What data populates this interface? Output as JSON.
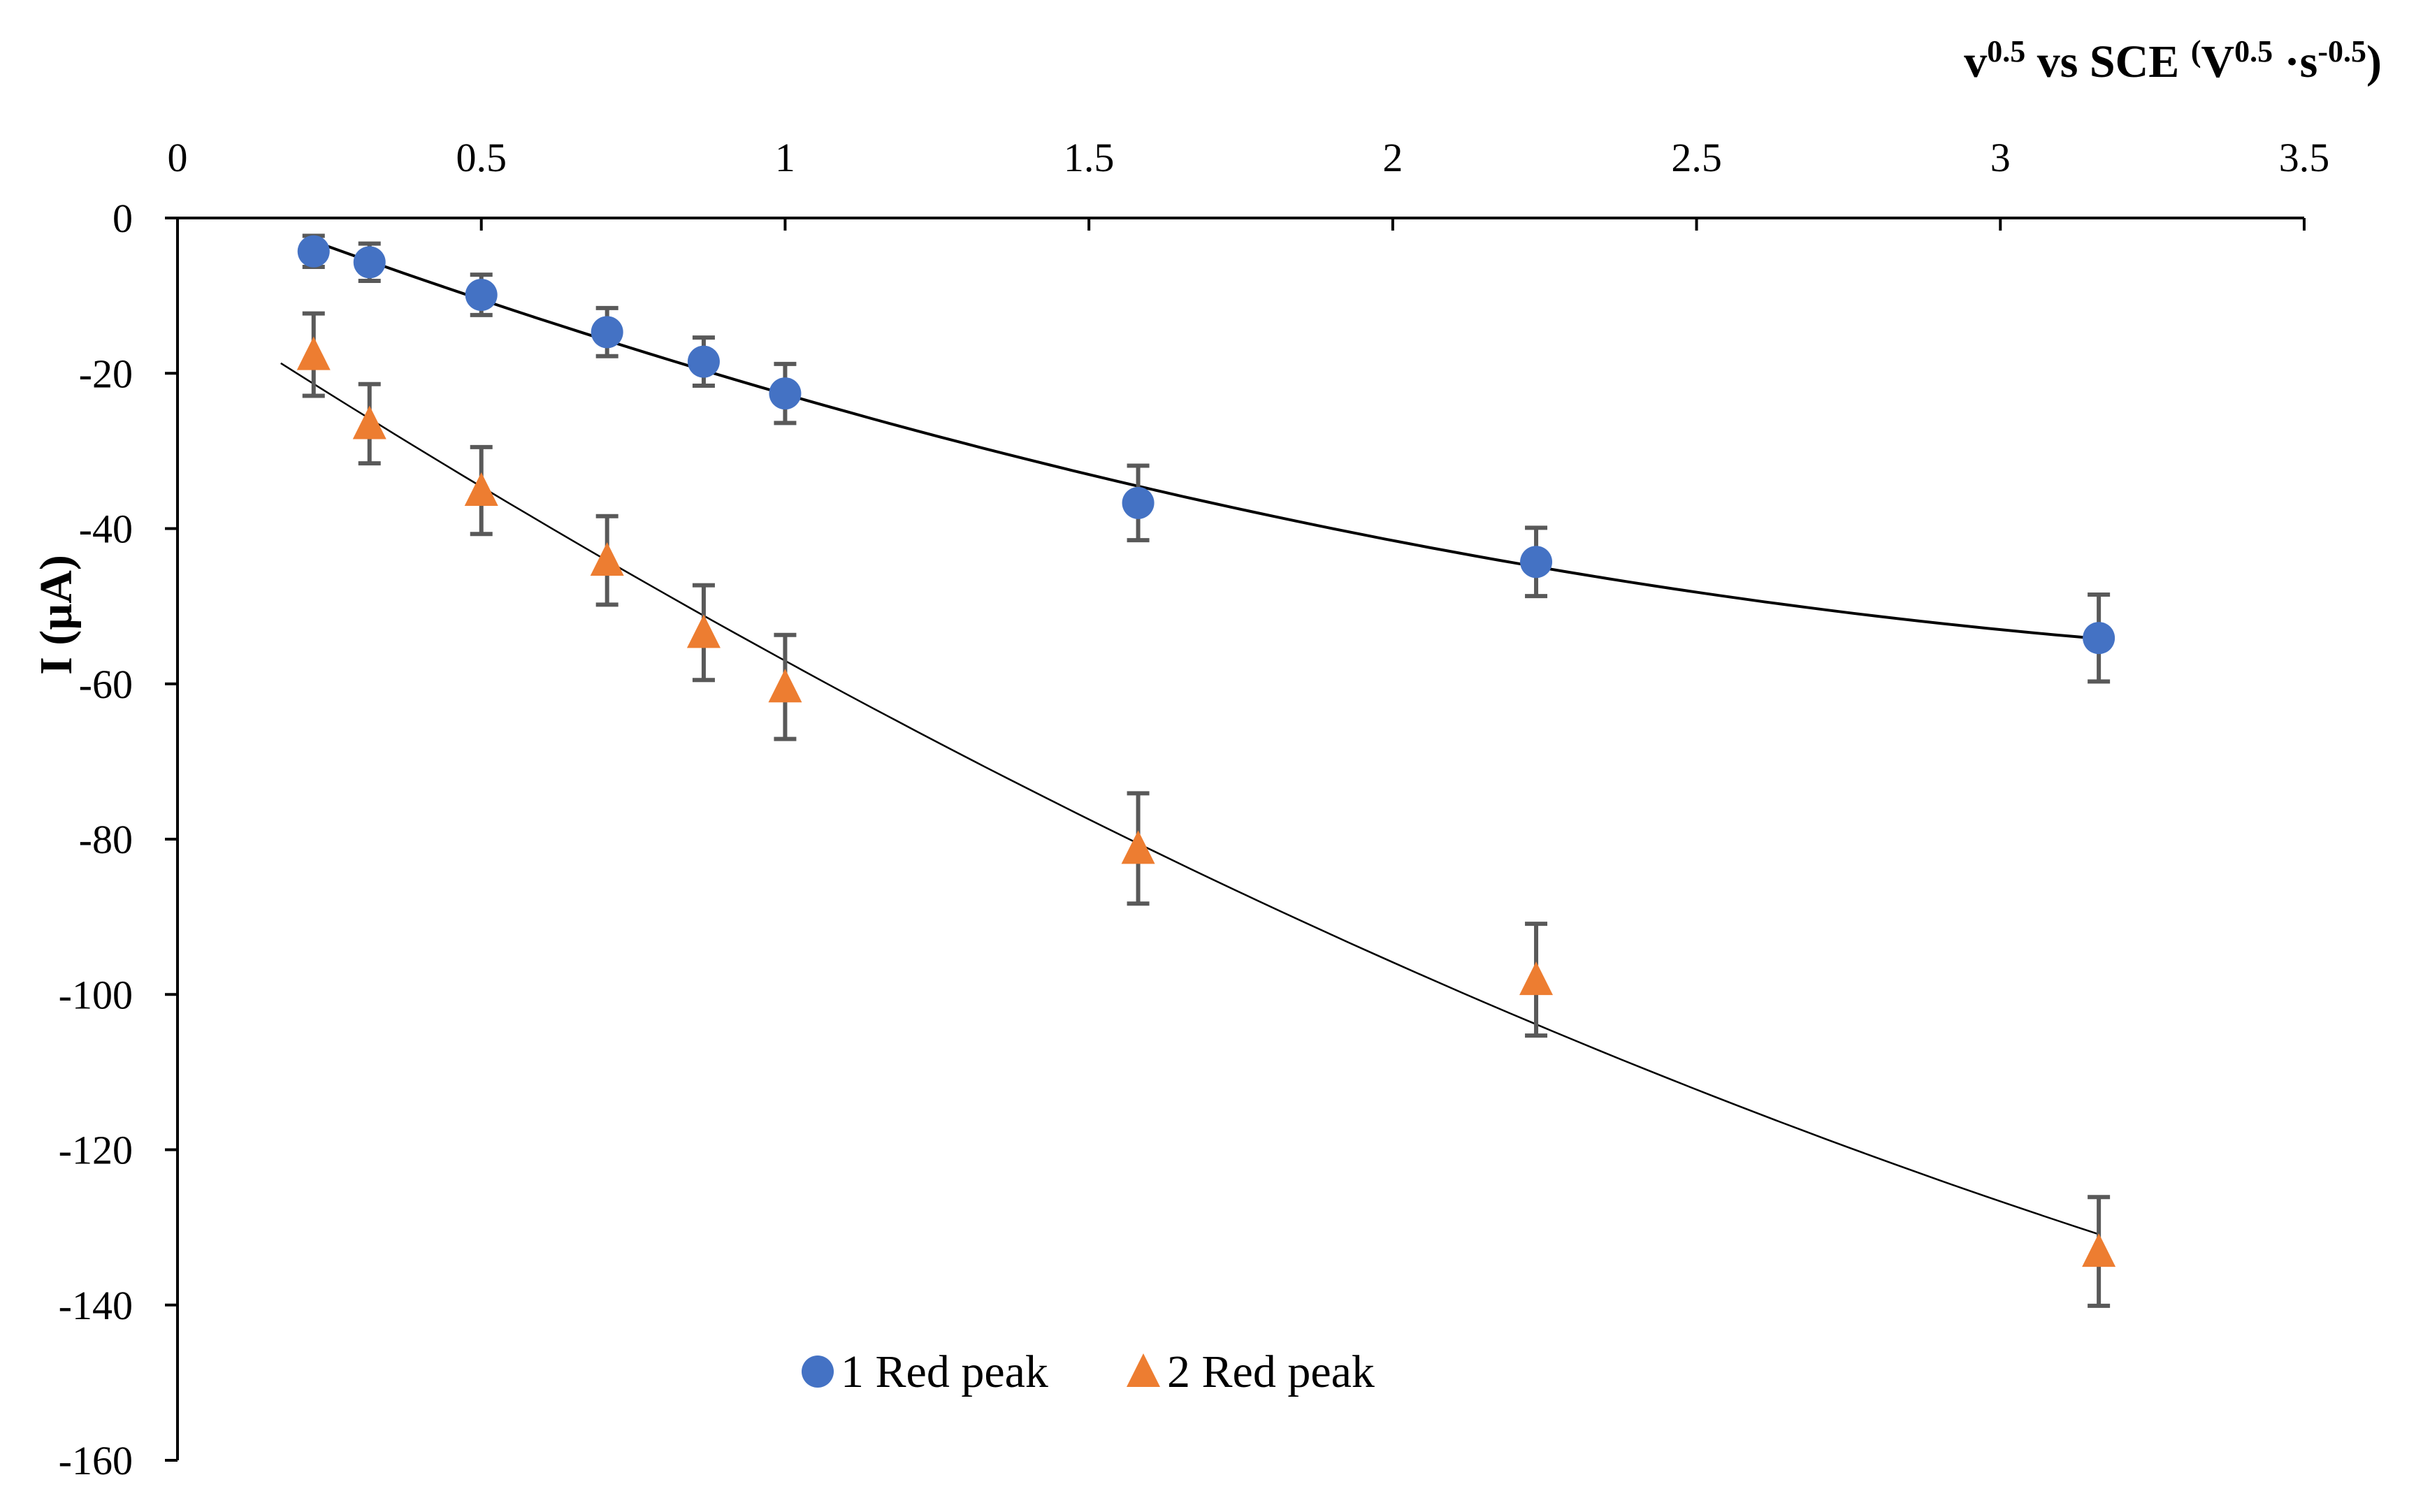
{
  "chart_data": {
    "type": "scatter",
    "title": "",
    "xlabel": {
      "parts": [
        {
          "text": "v",
          "sup": false
        },
        {
          "text": "0.5",
          "sup": true
        },
        {
          "text": " vs SCE ",
          "sup": false
        },
        {
          "text": "(",
          "sup": true
        },
        {
          "text": "V",
          "sup": false
        },
        {
          "text": "0.5",
          "sup": true
        },
        {
          "text": " ·s",
          "sup": false
        },
        {
          "text": "-0.5",
          "sup": true
        },
        {
          "text": ")",
          "sup": false
        }
      ]
    },
    "ylabel": "I (µA)",
    "xlim": [
      0,
      3.5
    ],
    "ylim": [
      -160,
      0
    ],
    "x_ticks": [
      {
        "value": 0,
        "label": "0"
      },
      {
        "value": 0.5,
        "label": "0.5"
      },
      {
        "value": 1,
        "label": "1"
      },
      {
        "value": 1.5,
        "label": "1.5"
      },
      {
        "value": 2,
        "label": "2"
      },
      {
        "value": 2.5,
        "label": "2.5"
      },
      {
        "value": 3,
        "label": "3"
      },
      {
        "value": 3.5,
        "label": "3.5"
      }
    ],
    "y_ticks": [
      {
        "value": 0,
        "label": "0"
      },
      {
        "value": -20,
        "label": "-20"
      },
      {
        "value": -40,
        "label": "-40"
      },
      {
        "value": -60,
        "label": "-60"
      },
      {
        "value": -80,
        "label": "-80"
      },
      {
        "value": -100,
        "label": "-100"
      },
      {
        "value": -120,
        "label": "-120"
      },
      {
        "value": -140,
        "label": "-140"
      },
      {
        "value": -160,
        "label": "-160"
      }
    ],
    "x_axis_position": "top",
    "grid": false,
    "legend_position": "bottom-center",
    "series": [
      {
        "name": "1 Red peak",
        "marker": "circle",
        "color": "#4472C4",
        "x": [
          0.224,
          0.316,
          0.5,
          0.707,
          0.866,
          1.0,
          1.581,
          2.236,
          3.162
        ],
        "y": [
          -4.3,
          -5.7,
          -9.9,
          -14.7,
          -18.5,
          -22.6,
          -36.7,
          -44.3,
          -54.1
        ],
        "error": [
          2.0,
          2.4,
          2.6,
          3.1,
          3.1,
          3.8,
          4.8,
          4.4,
          5.6
        ],
        "trendline": {
          "type": "polynomial",
          "x": [
            0.224,
            3.162
          ],
          "color": "#000000"
        }
      },
      {
        "name": "2 Red peak",
        "marker": "triangle",
        "color": "#ED7D31",
        "x": [
          0.224,
          0.316,
          0.5,
          0.707,
          0.866,
          1.0,
          1.581,
          2.236,
          3.162
        ],
        "y": [
          -17.6,
          -26.5,
          -35.1,
          -44.1,
          -53.4,
          -60.4,
          -81.2,
          -98.1,
          -133.1
        ],
        "error": [
          5.3,
          5.1,
          5.6,
          5.7,
          6.1,
          6.7,
          7.1,
          7.2,
          7.0
        ],
        "trendline": {
          "type": "polynomial",
          "x": [
            0.17,
            3.162
          ],
          "color": "#000000"
        }
      }
    ]
  }
}
